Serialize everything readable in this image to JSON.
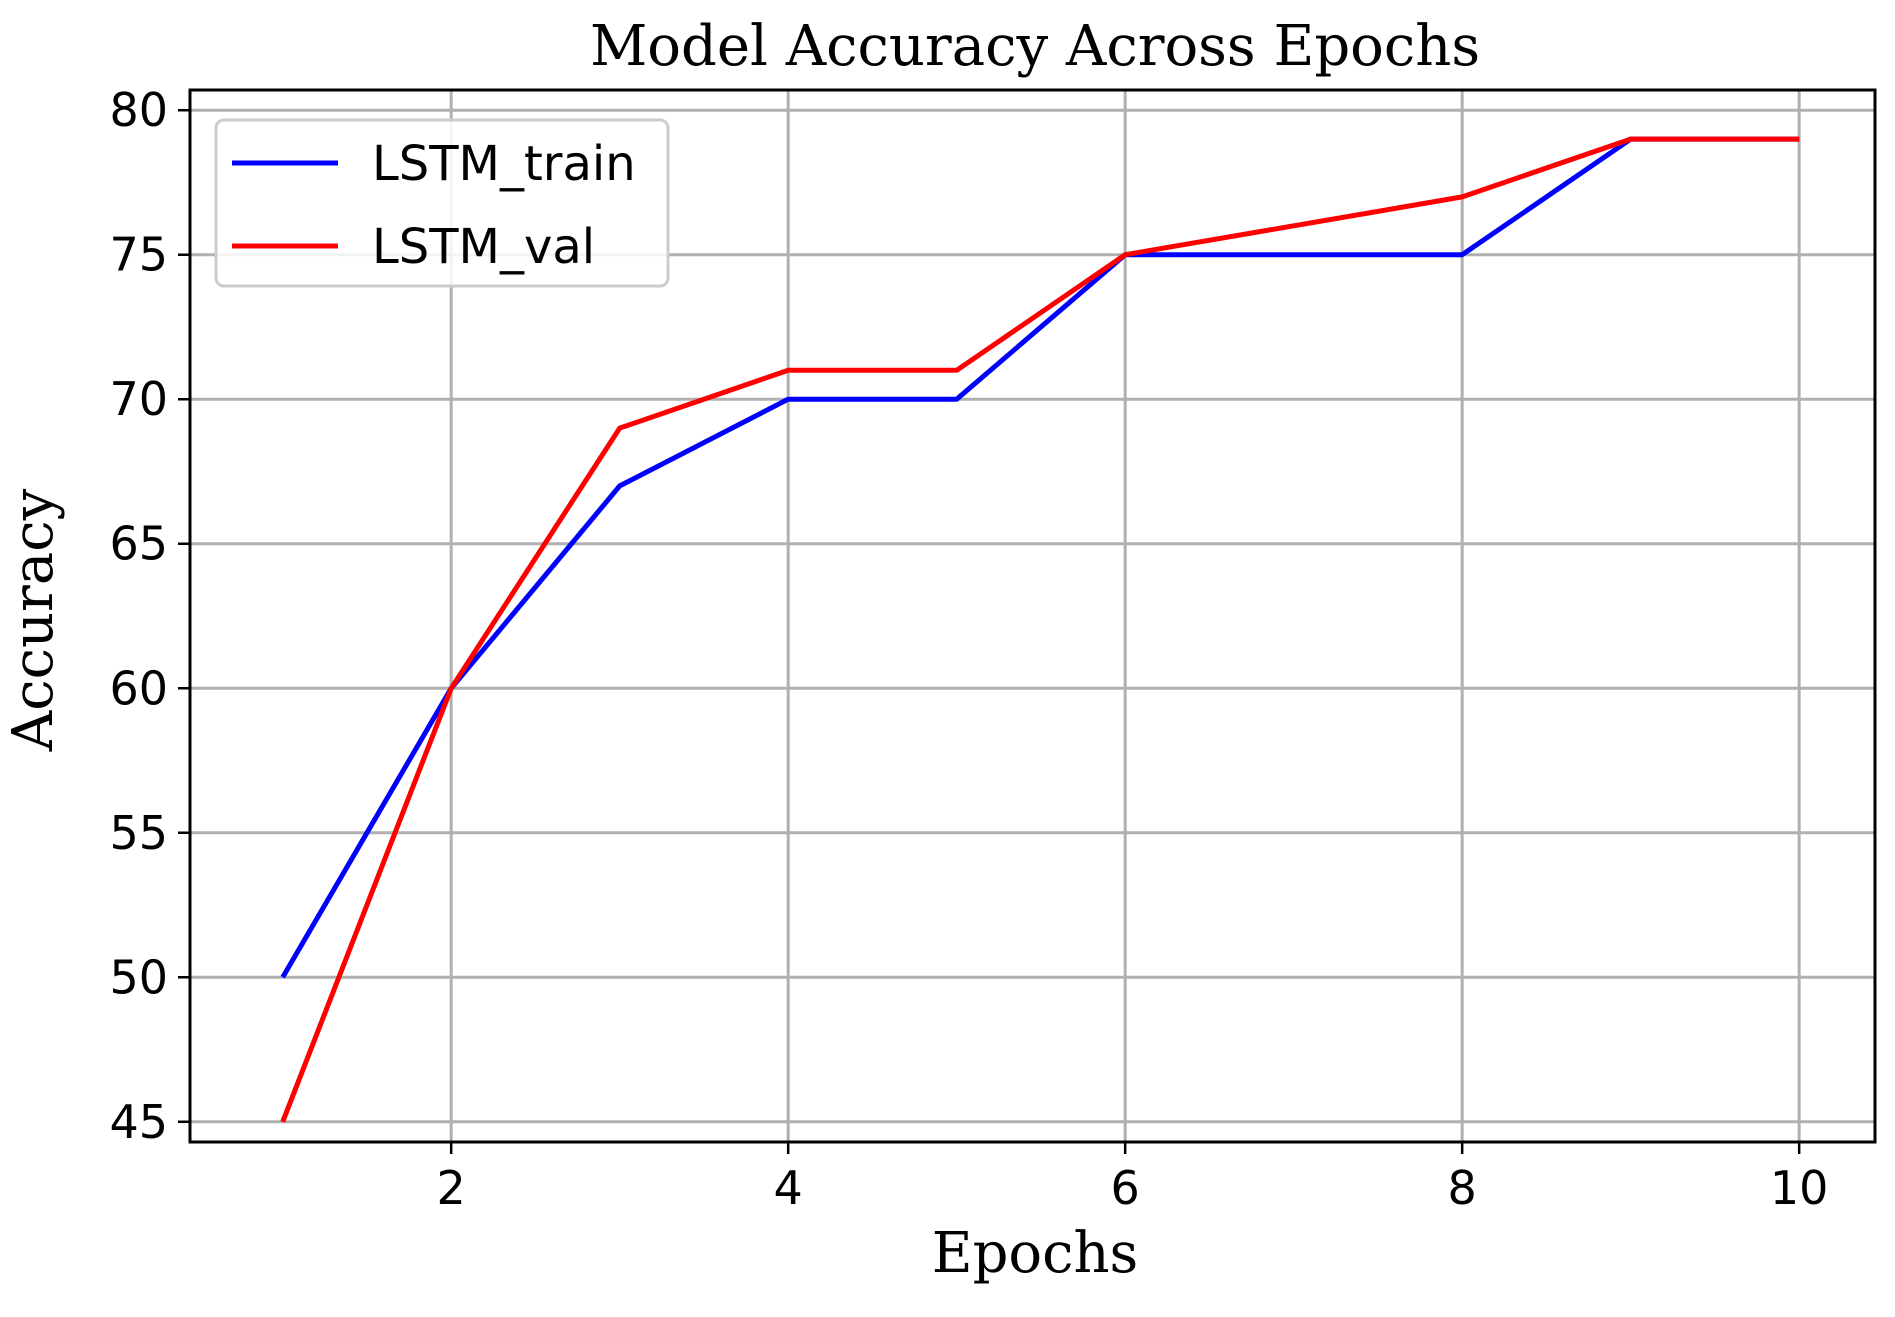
{
  "chart_data": {
    "type": "line",
    "title": "Model Accuracy Across Epochs",
    "xlabel": "Epochs",
    "ylabel": "Accuracy",
    "x": [
      1,
      2,
      3,
      4,
      5,
      6,
      7,
      8,
      9,
      10
    ],
    "xlim": [
      0.45,
      10.45
    ],
    "ylim": [
      44.3,
      80.7
    ],
    "xticks": [
      2,
      4,
      6,
      8,
      10
    ],
    "yticks": [
      45,
      50,
      55,
      60,
      65,
      70,
      75,
      80
    ],
    "grid": true,
    "legend_position": "upper-left",
    "series": [
      {
        "name": "LSTM_train",
        "color": "#0000ff",
        "values": [
          50,
          60,
          67,
          70,
          70,
          75,
          75,
          75,
          79,
          79
        ]
      },
      {
        "name": "LSTM_val",
        "color": "#ff0000",
        "values": [
          45,
          60,
          69,
          71,
          71,
          75,
          76,
          77,
          79,
          79
        ]
      }
    ]
  }
}
